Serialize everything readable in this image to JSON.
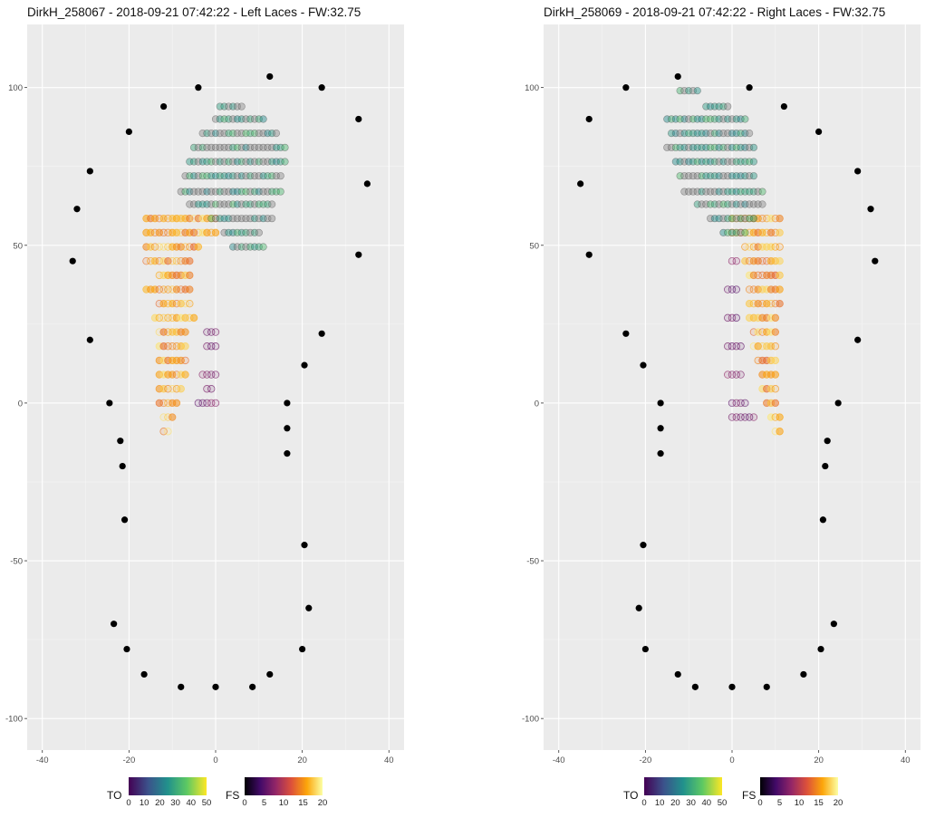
{
  "panels": [
    {
      "title": "DirkH_258067 - 2018-09-21 07:42:22 - Left Laces - FW:32.75",
      "side": "left"
    },
    {
      "title": "DirkH_258069 - 2018-09-21 07:42:22 - Right Laces - FW:32.75",
      "side": "right"
    }
  ],
  "legends": {
    "to": {
      "title": "TO",
      "ticks": [
        "0",
        "10",
        "20",
        "30",
        "40",
        "50"
      ],
      "colors": [
        "#440154",
        "#3b528b",
        "#21918c",
        "#5ec962",
        "#fde725"
      ]
    },
    "fs": {
      "title": "FS",
      "ticks": [
        "0",
        "5",
        "10",
        "15",
        "20"
      ],
      "colors": [
        "#000004",
        "#420a68",
        "#932667",
        "#dd513a",
        "#fca50a",
        "#fcffa4"
      ]
    }
  },
  "chart_data": [
    {
      "type": "scatter",
      "title": "DirkH_258067 - 2018-09-21 07:42:22 - Left Laces - FW:32.75",
      "xlabel": "",
      "ylabel": "",
      "xlim": [
        -43.5,
        43.5
      ],
      "ylim": [
        -110,
        120
      ],
      "xticks": [
        -40,
        -20,
        0,
        20,
        40
      ],
      "yticks": [
        -100,
        -50,
        0,
        50,
        100
      ],
      "grid": true,
      "outline": [
        {
          "x": -4,
          "y": 100
        },
        {
          "x": 12.5,
          "y": 103.5
        },
        {
          "x": 24.5,
          "y": 100
        },
        {
          "x": -12,
          "y": 94
        },
        {
          "x": 33,
          "y": 90
        },
        {
          "x": -20,
          "y": 86
        },
        {
          "x": -29,
          "y": 73.5
        },
        {
          "x": 35,
          "y": 69.5
        },
        {
          "x": -32,
          "y": 61.5
        },
        {
          "x": 33,
          "y": 47
        },
        {
          "x": -33,
          "y": 45
        },
        {
          "x": 24.5,
          "y": 22
        },
        {
          "x": -29,
          "y": 20
        },
        {
          "x": 20.5,
          "y": 12
        },
        {
          "x": -24.5,
          "y": 0
        },
        {
          "x": 16.5,
          "y": 0
        },
        {
          "x": 16.5,
          "y": -8
        },
        {
          "x": -22,
          "y": -12
        },
        {
          "x": 16.5,
          "y": -16
        },
        {
          "x": -21.5,
          "y": -20
        },
        {
          "x": -21,
          "y": -37
        },
        {
          "x": 20.5,
          "y": -45
        },
        {
          "x": 21.5,
          "y": -65
        },
        {
          "x": -23.5,
          "y": -70
        },
        {
          "x": -20.5,
          "y": -78
        },
        {
          "x": 20,
          "y": -78
        },
        {
          "x": -16.5,
          "y": -86
        },
        {
          "x": 12.5,
          "y": -86
        },
        {
          "x": -8,
          "y": -90
        },
        {
          "x": 0,
          "y": -90
        },
        {
          "x": 8.5,
          "y": -90
        }
      ],
      "toe_off_rows": [
        {
          "y": 94,
          "x_from": 1,
          "x_to": 6
        },
        {
          "y": 90,
          "x_from": 0,
          "x_to": 11
        },
        {
          "y": 85.5,
          "x_from": -3,
          "x_to": 14
        },
        {
          "y": 81,
          "x_from": -5,
          "x_to": 16
        },
        {
          "y": 76.5,
          "x_from": -6,
          "x_to": 16
        },
        {
          "y": 72,
          "x_from": -7,
          "x_to": 15
        },
        {
          "y": 67,
          "x_from": -8,
          "x_to": 15
        },
        {
          "y": 63,
          "x_from": -6,
          "x_to": 13
        },
        {
          "y": 58.5,
          "x_from": -1,
          "x_to": 13
        },
        {
          "y": 54,
          "x_from": 2,
          "x_to": 10
        },
        {
          "y": 49.5,
          "x_from": 4,
          "x_to": 11
        }
      ],
      "foot_strike_rows": [
        {
          "y": 58.5,
          "x_from": -16,
          "x_to": 0
        },
        {
          "y": 54,
          "x_from": -16,
          "x_to": 0
        },
        {
          "y": 49.5,
          "x_from": -16,
          "x_to": -4
        },
        {
          "y": 45,
          "x_from": -16,
          "x_to": -6
        },
        {
          "y": 40.5,
          "x_from": -13,
          "x_to": -6
        },
        {
          "y": 36,
          "x_from": -16,
          "x_to": -6
        },
        {
          "y": 31.5,
          "x_from": -13,
          "x_to": -6
        },
        {
          "y": 27,
          "x_from": -14,
          "x_to": -5
        },
        {
          "y": 22.5,
          "x_from": -13,
          "x_to": -7
        },
        {
          "y": 18,
          "x_from": -13,
          "x_to": -7
        },
        {
          "y": 13.5,
          "x_from": -13,
          "x_to": -7
        },
        {
          "y": 9,
          "x_from": -13,
          "x_to": -7
        },
        {
          "y": 4.5,
          "x_from": -13,
          "x_to": -8
        },
        {
          "y": 0,
          "x_from": -13,
          "x_to": -9
        },
        {
          "y": -4.5,
          "x_from": -12,
          "x_to": -10
        },
        {
          "y": -9,
          "x_from": -12,
          "x_to": -11
        }
      ],
      "foot_strike_inner": [
        {
          "y": 22.5,
          "x_from": -2,
          "x_to": 0
        },
        {
          "y": 18,
          "x_from": -2,
          "x_to": 0
        },
        {
          "y": 9,
          "x_from": -3,
          "x_to": 0
        },
        {
          "y": 4.5,
          "x_from": -2,
          "x_to": -1
        },
        {
          "y": 0,
          "x_from": -4,
          "x_to": 0
        }
      ]
    },
    {
      "type": "scatter",
      "title": "DirkH_258069 - 2018-09-21 07:42:22 - Right Laces - FW:32.75",
      "xlabel": "",
      "ylabel": "",
      "xlim": [
        -43.5,
        43.5
      ],
      "ylim": [
        -110,
        120
      ],
      "xticks": [
        -40,
        -20,
        0,
        20,
        40
      ],
      "yticks": [
        -100,
        -50,
        0,
        50,
        100
      ],
      "grid": true,
      "outline": [
        {
          "x": -12.5,
          "y": 103.5
        },
        {
          "x": 4,
          "y": 100
        },
        {
          "x": -24.5,
          "y": 100
        },
        {
          "x": 12,
          "y": 94
        },
        {
          "x": -33,
          "y": 90
        },
        {
          "x": 20,
          "y": 86
        },
        {
          "x": 29,
          "y": 73.5
        },
        {
          "x": -35,
          "y": 69.5
        },
        {
          "x": 32,
          "y": 61.5
        },
        {
          "x": -33,
          "y": 47
        },
        {
          "x": 33,
          "y": 45
        },
        {
          "x": -24.5,
          "y": 22
        },
        {
          "x": 29,
          "y": 20
        },
        {
          "x": -20.5,
          "y": 12
        },
        {
          "x": 24.5,
          "y": 0
        },
        {
          "x": -16.5,
          "y": 0
        },
        {
          "x": -16.5,
          "y": -8
        },
        {
          "x": 22,
          "y": -12
        },
        {
          "x": -16.5,
          "y": -16
        },
        {
          "x": 21.5,
          "y": -20
        },
        {
          "x": 21,
          "y": -37
        },
        {
          "x": -20.5,
          "y": -45
        },
        {
          "x": -21.5,
          "y": -65
        },
        {
          "x": 23.5,
          "y": -70
        },
        {
          "x": 20.5,
          "y": -78
        },
        {
          "x": -20,
          "y": -78
        },
        {
          "x": 16.5,
          "y": -86
        },
        {
          "x": -12.5,
          "y": -86
        },
        {
          "x": 8,
          "y": -90
        },
        {
          "x": 0,
          "y": -90
        },
        {
          "x": -8.5,
          "y": -90
        }
      ],
      "toe_off_rows": [
        {
          "y": 99,
          "x_from": -12,
          "x_to": -8
        },
        {
          "y": 94,
          "x_from": -6,
          "x_to": -1
        },
        {
          "y": 90,
          "x_from": -15,
          "x_to": 3
        },
        {
          "y": 85.5,
          "x_from": -14,
          "x_to": 4
        },
        {
          "y": 81,
          "x_from": -15,
          "x_to": 5
        },
        {
          "y": 76.5,
          "x_from": -13,
          "x_to": 5
        },
        {
          "y": 72,
          "x_from": -12,
          "x_to": 5
        },
        {
          "y": 67,
          "x_from": -11,
          "x_to": 7
        },
        {
          "y": 63,
          "x_from": -8,
          "x_to": 7
        },
        {
          "y": 58.5,
          "x_from": -5,
          "x_to": 5
        },
        {
          "y": 54,
          "x_from": -2,
          "x_to": 3
        }
      ],
      "foot_strike_rows": [
        {
          "y": 58.5,
          "x_from": 0,
          "x_to": 11
        },
        {
          "y": 54,
          "x_from": 0,
          "x_to": 11
        },
        {
          "y": 49.5,
          "x_from": 3,
          "x_to": 11
        },
        {
          "y": 45,
          "x_from": 3,
          "x_to": 11
        },
        {
          "y": 40.5,
          "x_from": 4,
          "x_to": 11
        },
        {
          "y": 36,
          "x_from": 4,
          "x_to": 11
        },
        {
          "y": 31.5,
          "x_from": 4,
          "x_to": 11
        },
        {
          "y": 27,
          "x_from": 4,
          "x_to": 10
        },
        {
          "y": 22.5,
          "x_from": 5,
          "x_to": 10
        },
        {
          "y": 18,
          "x_from": 5,
          "x_to": 10
        },
        {
          "y": 13.5,
          "x_from": 6,
          "x_to": 10
        },
        {
          "y": 9,
          "x_from": 7,
          "x_to": 10
        },
        {
          "y": 4.5,
          "x_from": 7,
          "x_to": 10
        },
        {
          "y": 0,
          "x_from": 8,
          "x_to": 10
        },
        {
          "y": -4.5,
          "x_from": 9,
          "x_to": 11
        },
        {
          "y": -9,
          "x_from": 10,
          "x_to": 11
        }
      ],
      "foot_strike_inner": [
        {
          "y": 45,
          "x_from": 0,
          "x_to": 1
        },
        {
          "y": 36,
          "x_from": -1,
          "x_to": 1
        },
        {
          "y": 27,
          "x_from": -1,
          "x_to": 1
        },
        {
          "y": 18,
          "x_from": -1,
          "x_to": 2
        },
        {
          "y": 9,
          "x_from": -1,
          "x_to": 2
        },
        {
          "y": 0,
          "x_from": 0,
          "x_to": 3
        },
        {
          "y": -4.5,
          "x_from": 0,
          "x_to": 5
        }
      ]
    }
  ]
}
